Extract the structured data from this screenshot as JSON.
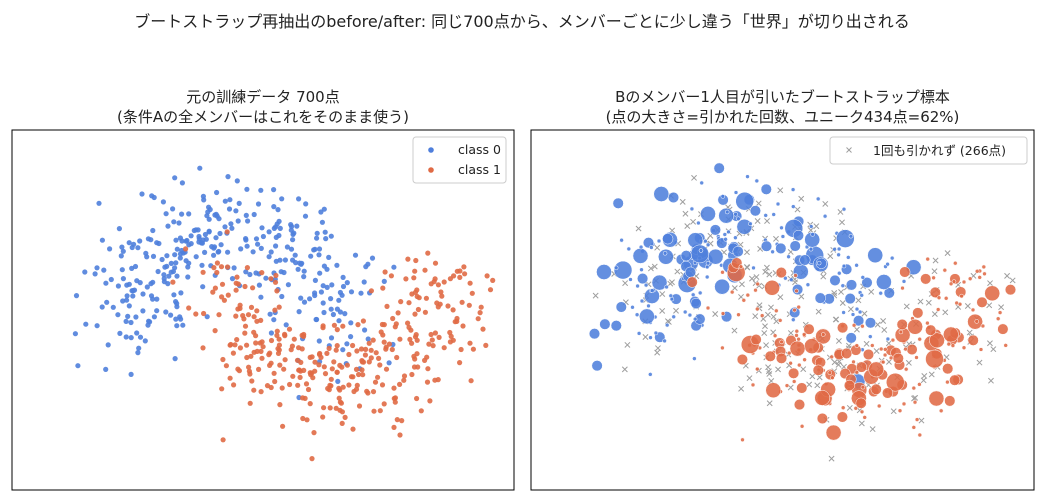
{
  "suptitle": "ブートストラップ再抽出のbefore/after: 同じ700点から、メンバーごとに少し違う「世界」が切り出される",
  "colors": {
    "class0": "#4f7fdc",
    "class1": "#e06a45",
    "unpicked": "#9e9e9e"
  },
  "chart_data": [
    {
      "type": "scatter",
      "title": "元の訓練データ 700点",
      "subtitle": "(条件Aの全メンバーはこれをそのまま使う)",
      "xlabel": "",
      "ylabel": "",
      "xlim": [
        -2.2,
        2.8
      ],
      "ylim": [
        -1.6,
        2.0
      ],
      "grid": false,
      "legend": {
        "placement": "top-right",
        "entries": [
          "class 0",
          "class 1"
        ]
      },
      "series": [
        {
          "name": "class 0",
          "n": 350,
          "cluster": "upper-left arc"
        },
        {
          "name": "class 1",
          "n": 350,
          "cluster": "lower-right arc"
        }
      ]
    },
    {
      "type": "scatter",
      "title": "Bのメンバー1人目が引いたブートストラップ標本",
      "subtitle": "(点の大きさ=引かれた回数、ユニーク434点=62%)",
      "xlabel": "",
      "ylabel": "",
      "xlim": [
        -2.2,
        2.8
      ],
      "ylim": [
        -1.6,
        2.0
      ],
      "grid": false,
      "legend": {
        "placement": "top-right",
        "entries": [
          "1回も引かれず (266点)"
        ]
      },
      "unique_points": 434,
      "unique_fraction": 0.62,
      "unpicked_points": 266
    }
  ]
}
